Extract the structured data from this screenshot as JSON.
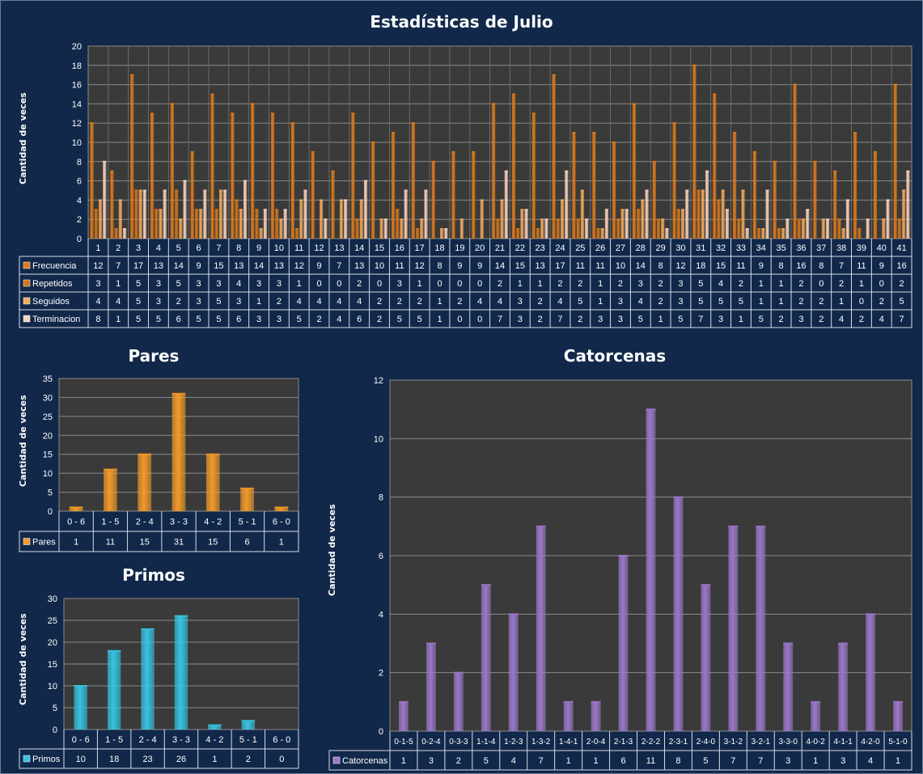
{
  "colors": {
    "background": "#11284a",
    "plot_bg": "#3a3a3a",
    "frecuencia": "#e07a1a",
    "repetidos": "#d2761c",
    "seguidos": "#f2a85a",
    "terminacion": "#f7d2bd",
    "pares": "#f39a2a",
    "primos": "#36c4e2",
    "catorcenas": "#9a78c8"
  },
  "chart_data": [
    {
      "id": "main",
      "type": "bar",
      "title": "Estadísticas de Julio",
      "ylabel": "Cantidad de veces",
      "xlabel": "",
      "ylim": [
        0,
        20
      ],
      "yticks": [
        0,
        2,
        4,
        6,
        8,
        10,
        12,
        14,
        16,
        18,
        20
      ],
      "grid": true,
      "categories": [
        "1",
        "2",
        "3",
        "4",
        "5",
        "6",
        "7",
        "8",
        "9",
        "10",
        "11",
        "12",
        "13",
        "14",
        "15",
        "16",
        "17",
        "18",
        "19",
        "20",
        "21",
        "22",
        "23",
        "24",
        "25",
        "26",
        "27",
        "28",
        "29",
        "30",
        "31",
        "32",
        "33",
        "34",
        "35",
        "36",
        "37",
        "38",
        "39",
        "40",
        "41"
      ],
      "series": [
        {
          "name": "Frecuencia",
          "color_key": "frecuencia",
          "values": [
            12,
            7,
            17,
            13,
            14,
            9,
            15,
            13,
            14,
            13,
            12,
            9,
            7,
            13,
            10,
            11,
            12,
            8,
            9,
            9,
            14,
            15,
            13,
            17,
            11,
            11,
            10,
            14,
            8,
            12,
            18,
            15,
            11,
            9,
            8,
            16,
            8,
            7,
            11,
            9,
            16
          ]
        },
        {
          "name": "Repetidos",
          "color_key": "repetidos",
          "values": [
            3,
            1,
            5,
            3,
            5,
            3,
            3,
            4,
            3,
            3,
            1,
            0,
            0,
            2,
            0,
            3,
            1,
            0,
            0,
            0,
            2,
            1,
            1,
            2,
            2,
            1,
            2,
            3,
            2,
            3,
            5,
            4,
            2,
            1,
            1,
            2,
            0,
            2,
            1,
            0,
            2
          ]
        },
        {
          "name": "Seguidos",
          "color_key": "seguidos",
          "values": [
            4,
            4,
            5,
            3,
            2,
            3,
            5,
            3,
            1,
            2,
            4,
            4,
            4,
            4,
            2,
            2,
            2,
            1,
            2,
            4,
            4,
            3,
            2,
            4,
            5,
            1,
            3,
            4,
            2,
            3,
            5,
            5,
            5,
            1,
            1,
            2,
            2,
            1,
            0,
            2,
            5
          ]
        },
        {
          "name": "Terminacion",
          "color_key": "terminacion",
          "values": [
            8,
            1,
            5,
            5,
            6,
            5,
            5,
            6,
            3,
            3,
            5,
            2,
            4,
            6,
            2,
            5,
            5,
            1,
            0,
            0,
            7,
            3,
            2,
            7,
            2,
            3,
            3,
            5,
            1,
            5,
            7,
            3,
            1,
            5,
            2,
            3,
            2,
            4,
            2,
            4,
            7
          ]
        }
      ]
    },
    {
      "id": "pares",
      "type": "bar",
      "title": "Pares",
      "ylabel": "Cantidad de veces",
      "xlabel": "",
      "ylim": [
        0,
        35
      ],
      "yticks": [
        0,
        5,
        10,
        15,
        20,
        25,
        30,
        35
      ],
      "grid": true,
      "categories": [
        "0 - 6",
        "1 - 5",
        "2 - 4",
        "3 - 3",
        "4 - 2",
        "5 - 1",
        "6 - 0"
      ],
      "series": [
        {
          "name": "Pares",
          "color_key": "pares",
          "values": [
            1,
            11,
            15,
            31,
            15,
            6,
            1
          ]
        }
      ]
    },
    {
      "id": "primos",
      "type": "bar",
      "title": "Primos",
      "ylabel": "Cantidad de veces",
      "xlabel": "",
      "ylim": [
        0,
        30
      ],
      "yticks": [
        0,
        5,
        10,
        15,
        20,
        25,
        30
      ],
      "grid": true,
      "categories": [
        "0 - 6",
        "1 - 5",
        "2 - 4",
        "3 - 3",
        "4 - 2",
        "5 - 1",
        "6 - 0"
      ],
      "series": [
        {
          "name": "Primos",
          "color_key": "primos",
          "values": [
            10,
            18,
            23,
            26,
            1,
            2,
            0
          ]
        }
      ]
    },
    {
      "id": "catorcenas",
      "type": "bar",
      "title": "Catorcenas",
      "ylabel": "Cantidad de veces",
      "xlabel": "",
      "ylim": [
        0,
        12
      ],
      "yticks": [
        0,
        2,
        4,
        6,
        8,
        10,
        12
      ],
      "grid": true,
      "categories": [
        "0-1-5",
        "0-2-4",
        "0-3-3",
        "1-1-4",
        "1-2-3",
        "1-3-2",
        "1-4-1",
        "2-0-4",
        "2-1-3",
        "2-2-2",
        "2-3-1",
        "2-4-0",
        "3-1-2",
        "3-2-1",
        "3-3-0",
        "4-0-2",
        "4-1-1",
        "4-2-0",
        "5-1-0"
      ],
      "series": [
        {
          "name": "Catorcenas",
          "color_key": "catorcenas",
          "values": [
            1,
            3,
            2,
            5,
            4,
            7,
            1,
            1,
            6,
            11,
            8,
            5,
            7,
            7,
            3,
            1,
            3,
            4,
            1
          ]
        }
      ]
    }
  ]
}
